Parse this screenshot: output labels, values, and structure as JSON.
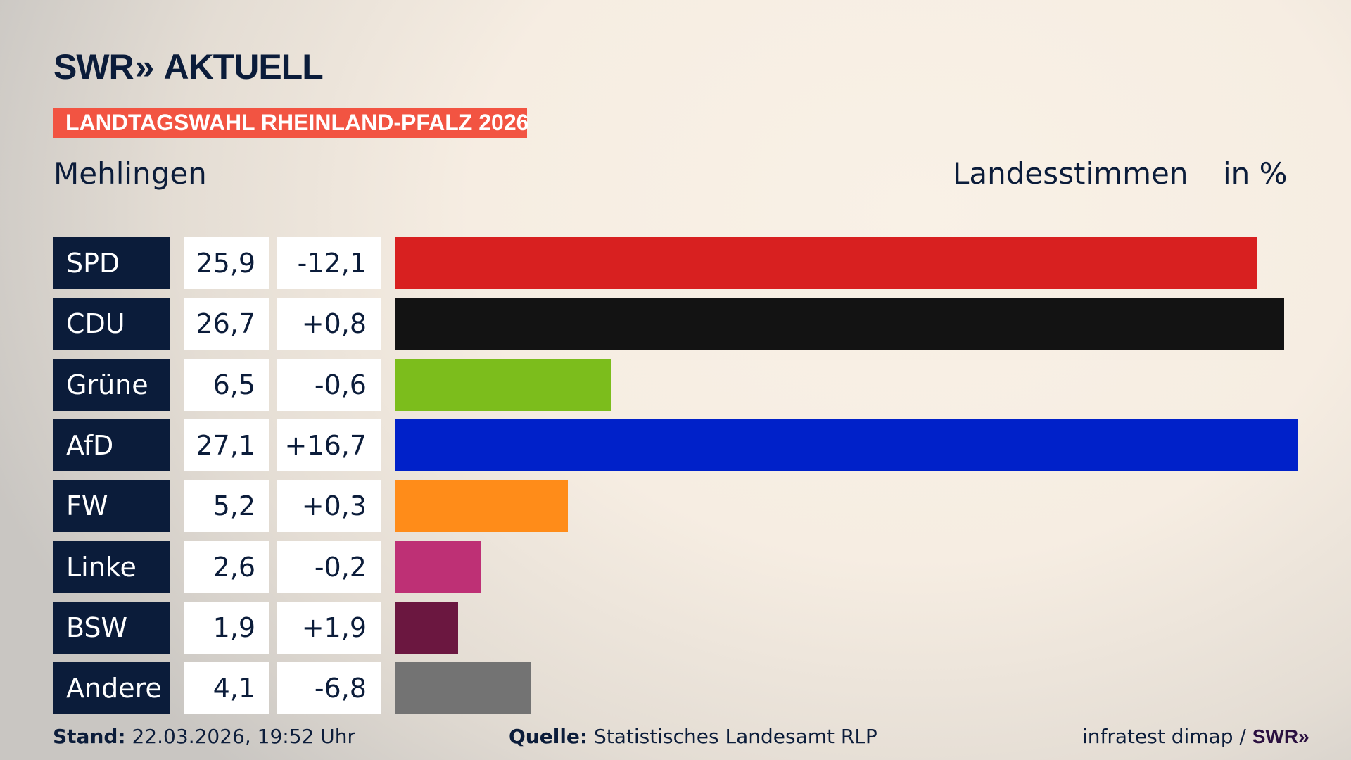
{
  "header": {
    "logo_text": "SWR",
    "logo_suffix": "AKTUELL",
    "banner": "LANDTAGSWAHL RHEINLAND-PFALZ 2026",
    "place": "Mehlingen",
    "measure": "Landesstimmen",
    "unit": "in %"
  },
  "chart_data": {
    "type": "bar",
    "orientation": "horizontal",
    "title": "Mehlingen",
    "ylabel": "Landesstimmen",
    "unit": "in %",
    "categories": [
      "SPD",
      "CDU",
      "Grüne",
      "AfD",
      "FW",
      "Linke",
      "BSW",
      "Andere"
    ],
    "values": [
      25.9,
      26.7,
      6.5,
      27.1,
      5.2,
      2.6,
      1.9,
      4.1
    ],
    "value_labels": [
      "25,9",
      "26,7",
      "6,5",
      "27,1",
      "5,2",
      "2,6",
      "1,9",
      "4,1"
    ],
    "changes": [
      -12.1,
      0.8,
      -0.6,
      16.7,
      0.3,
      -0.2,
      1.9,
      -6.8
    ],
    "change_labels": [
      "-12,1",
      "+0,8",
      "-0,6",
      "+16,7",
      "+0,3",
      "-0,2",
      "+1,9",
      "-6,8"
    ],
    "colors": [
      "#d82020",
      "#131313",
      "#7cbd1c",
      "#0021c9",
      "#ff8c19",
      "#be3075",
      "#6b1740",
      "#737373"
    ],
    "grid": false
  },
  "footer": {
    "stand_label": "Stand:",
    "stand_value": "22.03.2026, 19:52 Uhr",
    "source_label": "Quelle:",
    "source_value": "Statistisches Landesamt RLP",
    "credit": "infratest dimap /",
    "credit_logo": "SWR"
  }
}
